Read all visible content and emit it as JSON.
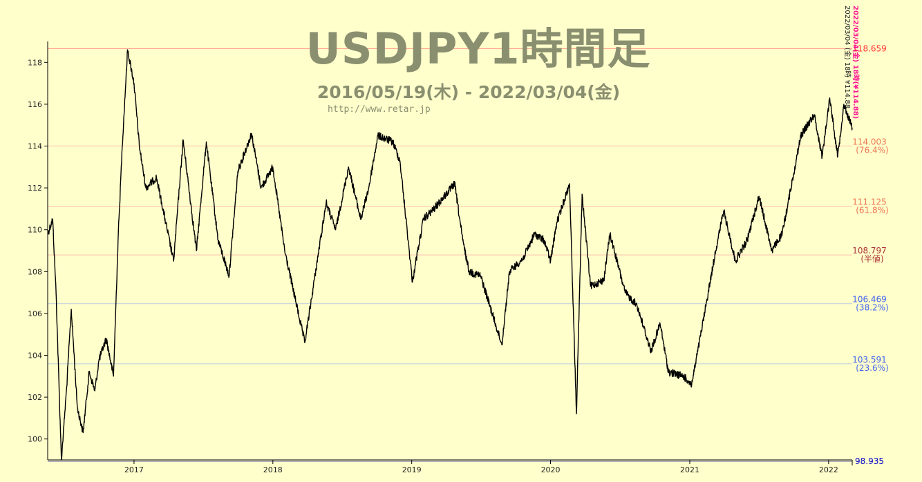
{
  "chart_data": {
    "type": "line",
    "title": "USDJPY1時間足",
    "subtitle": "2016/05/19(木) - 2022/03/04(金)",
    "url": "http://www.retar.jp",
    "ylim": [
      99.0,
      119.0
    ],
    "y_ticks": [
      "100",
      "102",
      "104",
      "106",
      "108",
      "110",
      "112",
      "114",
      "116",
      "118"
    ],
    "x_ticks": [
      "2017",
      "2018",
      "2019",
      "2020",
      "2021",
      "2022"
    ],
    "grid": false,
    "colors": {
      "background": "#ffffcc",
      "line": "#000000",
      "high": "#ff3333",
      "low": "#0000cc",
      "fib_high": "#ee7755",
      "fib_mid": "#aa3333",
      "fib_low": "#4466ee"
    },
    "levels": [
      {
        "name": "high",
        "value": 118.659,
        "label": "118.659",
        "sub": ""
      },
      {
        "name": "fib_76",
        "value": 114.003,
        "label": "114.003",
        "sub": "(76.4%)"
      },
      {
        "name": "fib_62",
        "value": 111.125,
        "label": "111.125",
        "sub": "(61.8%)"
      },
      {
        "name": "half",
        "value": 108.797,
        "label": "108.797",
        "sub": "(半値)"
      },
      {
        "name": "fib_38",
        "value": 106.469,
        "label": "106.469",
        "sub": "(38.2%)"
      },
      {
        "name": "fib_24",
        "value": 103.591,
        "label": "103.591",
        "sub": "(23.6%)"
      },
      {
        "name": "low",
        "value": 98.935,
        "label": "98.935",
        "sub": ""
      }
    ],
    "vertical_notes": {
      "black": "2022/03/04 (金) 18時 ¥114.88",
      "pink": "2022/03/04(金) 18時(¥114.88)"
    },
    "series": [
      {
        "x": [
          "2016-05-19",
          "2016-06-01",
          "2016-06-10",
          "2016-06-24",
          "2016-07-08",
          "2016-07-20",
          "2016-08-05",
          "2016-08-20",
          "2016-09-05",
          "2016-09-20",
          "2016-10-01",
          "2016-10-20",
          "2016-11-08",
          "2016-11-20",
          "2016-12-01",
          "2016-12-15",
          "2017-01-01",
          "2017-01-15",
          "2017-02-01",
          "2017-03-01",
          "2017-04-15",
          "2017-05-10",
          "2017-06-14",
          "2017-07-10",
          "2017-08-10",
          "2017-09-08",
          "2017-10-01",
          "2017-11-06",
          "2017-12-01",
          "2018-01-01",
          "2018-02-01",
          "2018-03-26",
          "2018-05-21",
          "2018-06-15",
          "2018-07-19",
          "2018-08-20",
          "2018-09-10",
          "2018-10-04",
          "2018-11-12",
          "2018-12-01",
          "2019-01-03",
          "2019-01-10",
          "2019-02-01",
          "2019-03-01",
          "2019-04-24",
          "2019-05-15",
          "2019-06-01",
          "2019-07-01",
          "2019-08-26",
          "2019-09-15",
          "2019-10-20",
          "2019-11-20",
          "2019-12-15",
          "2020-01-01",
          "2020-01-17",
          "2020-02-20",
          "2020-03-09",
          "2020-03-24",
          "2020-04-15",
          "2020-05-20",
          "2020-06-05",
          "2020-07-15",
          "2020-08-15",
          "2020-09-21",
          "2020-10-15",
          "2020-11-06",
          "2020-12-15",
          "2021-01-06",
          "2021-02-01",
          "2021-03-10",
          "2021-03-31",
          "2021-05-01",
          "2021-06-01",
          "2021-07-02",
          "2021-08-05",
          "2021-09-01",
          "2021-10-20",
          "2021-11-24",
          "2021-12-15",
          "2022-01-04",
          "2022-01-25",
          "2022-02-10",
          "2022-03-04"
        ],
        "values": [
          109.8,
          110.5,
          107.0,
          99.0,
          102.5,
          106.2,
          101.5,
          100.3,
          103.2,
          102.3,
          103.8,
          104.8,
          103.0,
          109.5,
          114.0,
          118.6,
          117.0,
          114.0,
          112.0,
          112.5,
          108.5,
          114.3,
          109.0,
          114.2,
          109.5,
          107.8,
          112.8,
          114.6,
          112.0,
          113.0,
          109.0,
          104.6,
          111.3,
          110.0,
          113.0,
          110.5,
          112.0,
          114.5,
          114.2,
          113.3,
          107.5,
          108.3,
          110.5,
          111.0,
          112.2,
          109.5,
          108.0,
          107.8,
          104.5,
          108.0,
          108.6,
          109.8,
          109.5,
          108.5,
          110.3,
          112.2,
          101.2,
          111.7,
          107.3,
          107.6,
          109.8,
          107.0,
          106.4,
          104.2,
          105.5,
          103.2,
          103.0,
          102.6,
          105.2,
          109.0,
          110.9,
          108.5,
          109.5,
          111.6,
          109.0,
          109.8,
          114.5,
          115.5,
          113.5,
          116.3,
          113.5,
          116.0,
          114.88
        ]
      }
    ]
  }
}
